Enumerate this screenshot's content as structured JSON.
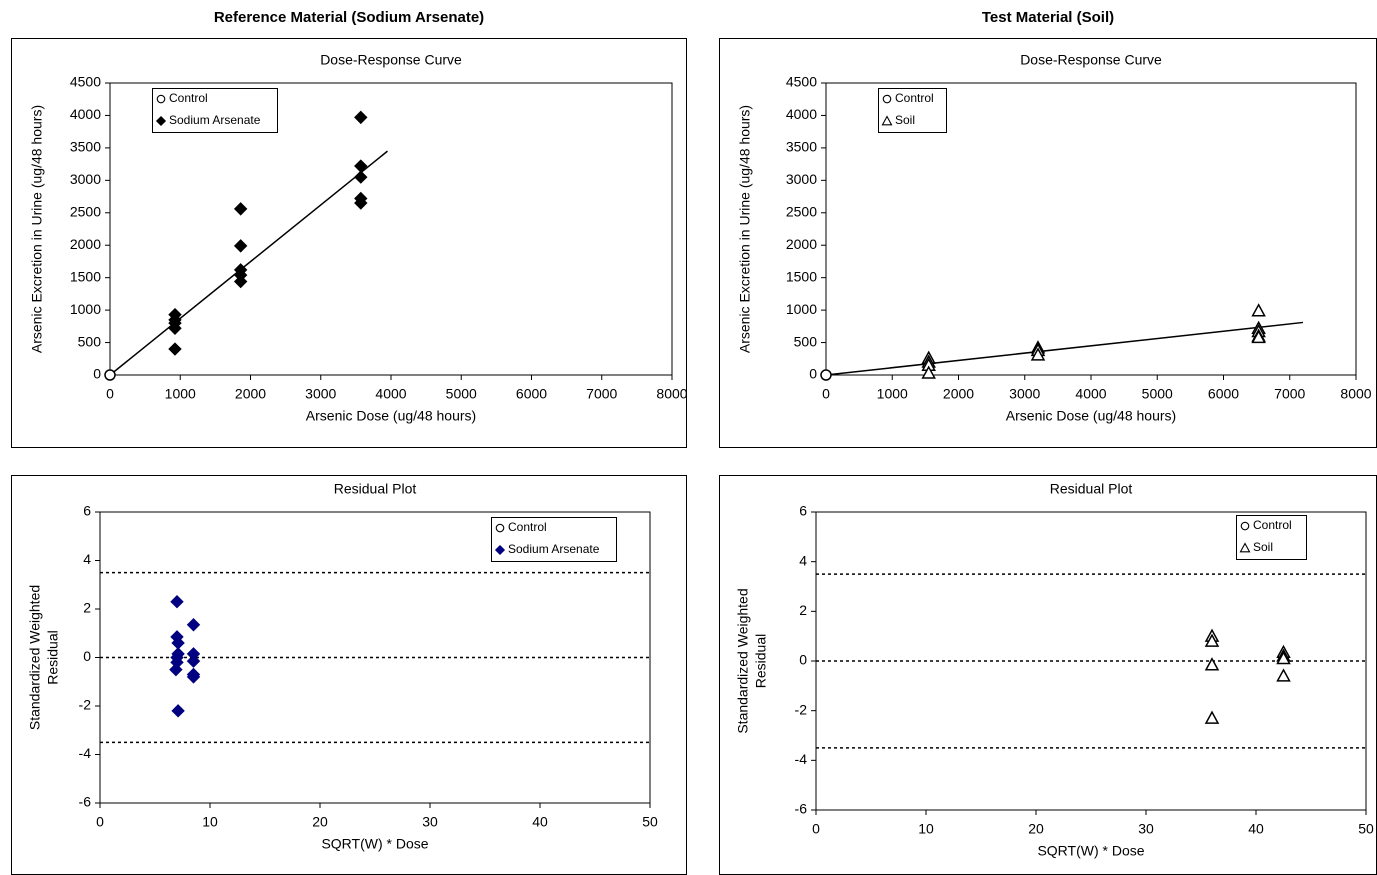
{
  "chart_data": [
    {
      "type": "scatter",
      "header": "Reference Material (Sodium Arsenate)",
      "title": "Dose-Response Curve",
      "xlabel": "Arsenic Dose (ug/48 hours)",
      "ylabel": [
        "Arsenic Excretion in Urine (ug/48 hours)"
      ],
      "xlim": [
        0,
        8000
      ],
      "xticks": [
        0,
        1000,
        2000,
        3000,
        4000,
        5000,
        6000,
        7000,
        8000
      ],
      "ylim": [
        0,
        4500
      ],
      "yticks": [
        0,
        500,
        1000,
        1500,
        2000,
        2500,
        3000,
        3500,
        4000,
        4500
      ],
      "series": [
        {
          "name": "Control",
          "color": "#000000",
          "marker": "circle-open",
          "x": [
            0
          ],
          "values": [
            0
          ]
        },
        {
          "name": "Sodium Arsenate",
          "color": "#000000",
          "marker": "diamond",
          "x": [
            925,
            925,
            925,
            925,
            925,
            1860,
            1860,
            1860,
            1860,
            1860,
            3570,
            3570,
            3570,
            3570,
            3570
          ],
          "values": [
            930,
            850,
            800,
            720,
            400,
            2560,
            1990,
            1620,
            1540,
            1440,
            3970,
            3220,
            3050,
            2720,
            2650
          ]
        }
      ],
      "fit_line": {
        "x": [
          0,
          3950
        ],
        "values": [
          0,
          3450
        ]
      }
    },
    {
      "type": "scatter",
      "header": "Test Material (Soil)",
      "title": "Dose-Response Curve",
      "xlabel": "Arsenic Dose (ug/48 hours)",
      "ylabel": [
        "Arsenic Excretion in Urine (ug/48 hours)"
      ],
      "xlim": [
        0,
        8000
      ],
      "xticks": [
        0,
        1000,
        2000,
        3000,
        4000,
        5000,
        6000,
        7000,
        8000
      ],
      "ylim": [
        0,
        4500
      ],
      "yticks": [
        0,
        500,
        1000,
        1500,
        2000,
        2500,
        3000,
        3500,
        4000,
        4500
      ],
      "series": [
        {
          "name": "Control",
          "color": "#000000",
          "marker": "circle-open",
          "x": [
            0
          ],
          "values": [
            0
          ]
        },
        {
          "name": "Soil",
          "color": "#000000",
          "marker": "triangle-open",
          "x": [
            1550,
            1550,
            1550,
            1550,
            3200,
            3200,
            3200,
            6530,
            6530,
            6530,
            6530,
            6530
          ],
          "values": [
            260,
            200,
            150,
            30,
            420,
            380,
            310,
            990,
            720,
            670,
            600,
            580
          ]
        }
      ],
      "fit_line": {
        "x": [
          0,
          7200
        ],
        "values": [
          0,
          810
        ]
      }
    },
    {
      "type": "scatter",
      "title": "Residual Plot",
      "xlabel": "SQRT(W) * Dose",
      "ylabel": [
        "Standardized Weighted",
        "Residual"
      ],
      "xlim": [
        0,
        50
      ],
      "xticks": [
        0,
        10,
        20,
        30,
        40,
        50
      ],
      "ylim": [
        -6,
        6
      ],
      "yticks": [
        -6,
        -4,
        -2,
        0,
        2,
        4,
        6
      ],
      "series": [
        {
          "name": "Control",
          "color": "#000000",
          "marker": "circle-open",
          "x": [],
          "values": []
        },
        {
          "name": "Sodium Arsenate",
          "color": "#000080",
          "marker": "diamond",
          "x": [
            7,
            7,
            7.1,
            7.1,
            7,
            7,
            6.9,
            7.1,
            8.5,
            8.5,
            8.5,
            8.5,
            8.5
          ],
          "values": [
            2.3,
            0.85,
            0.6,
            0.15,
            0,
            -0.2,
            -0.5,
            -2.2,
            1.35,
            0.15,
            -0.15,
            -0.7,
            -0.8
          ]
        }
      ],
      "ref_lines": [
        3.5,
        0,
        -3.5
      ]
    },
    {
      "type": "scatter",
      "title": "Residual Plot",
      "xlabel": "SQRT(W) * Dose",
      "ylabel": [
        "Standardized Weighted",
        "Residual"
      ],
      "xlim": [
        0,
        50
      ],
      "xticks": [
        0,
        10,
        20,
        30,
        40,
        50
      ],
      "ylim": [
        -6,
        6
      ],
      "yticks": [
        -6,
        -4,
        -2,
        0,
        2,
        4,
        6
      ],
      "series": [
        {
          "name": "Control",
          "color": "#000000",
          "marker": "circle-open",
          "x": [],
          "values": []
        },
        {
          "name": "Soil",
          "color": "#000000",
          "marker": "triangle-open",
          "x": [
            36,
            36,
            36,
            36,
            42.5,
            42.5,
            42.5,
            42.5
          ],
          "values": [
            1.0,
            0.8,
            -0.15,
            -2.3,
            0.35,
            0.2,
            0.1,
            -0.6
          ]
        }
      ],
      "ref_lines": [
        3.5,
        0,
        -3.5
      ]
    }
  ]
}
